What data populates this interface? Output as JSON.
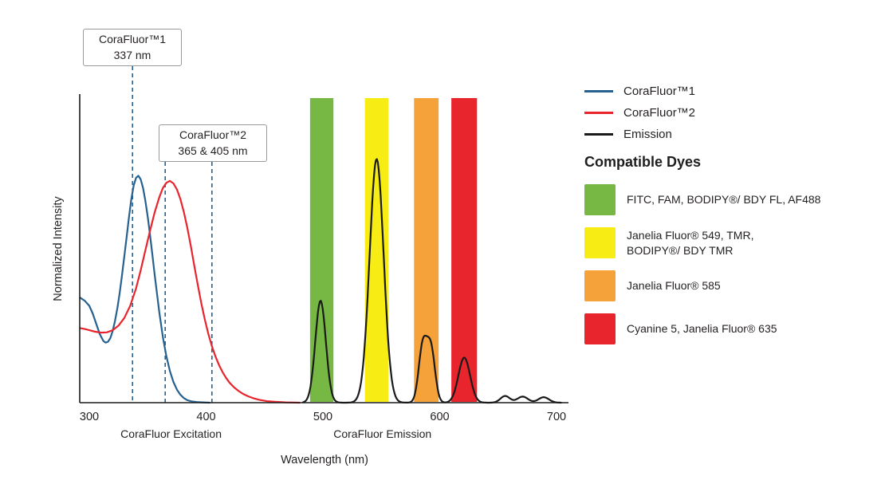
{
  "annotations": [
    {
      "title": "CoraFluor™1",
      "value": "337 nm",
      "lines_nm": [
        337
      ]
    },
    {
      "title": "CoraFluor™2",
      "value": "365 & 405 nm",
      "lines_nm": [
        365,
        405
      ]
    }
  ],
  "legend": {
    "items": [
      {
        "label": "CoraFluor™1",
        "color": "#26618F"
      },
      {
        "label": "CoraFluor™2",
        "color": "#E8242D"
      },
      {
        "label": "Emission",
        "color": "#1A1A1A"
      }
    ]
  },
  "compatible_dyes": {
    "heading": "Compatible Dyes",
    "items": [
      {
        "name": "green",
        "color": "#76B843",
        "label": "FITC, FAM, BODIPY®/ BDY FL, AF488"
      },
      {
        "name": "yellow",
        "color": "#F7EC13",
        "label": "Janelia Fluor® 549, TMR,\nBODIPY®/ BDY TMR"
      },
      {
        "name": "orange",
        "color": "#F5A23B",
        "label": "Janelia Fluor® 585"
      },
      {
        "name": "red",
        "color": "#E8242D",
        "label": "Cyanine 5, Janelia Fluor® 635"
      }
    ]
  },
  "chart_data": {
    "type": "line",
    "title": "",
    "xlabel": "Wavelength (nm)",
    "ylabel": "Normalized Intensity",
    "xlim": [
      300,
      700
    ],
    "ylim": [
      0,
      1
    ],
    "x_ticks": [
      300,
      400,
      500,
      600,
      700
    ],
    "grid": false,
    "legend_position": "top-right",
    "axis_sections": [
      {
        "label": "CoraFluor Excitation",
        "center_nm": 370
      },
      {
        "label": "CoraFluor Emission",
        "center_nm": 551
      }
    ],
    "annotation_line_color": "#26618F",
    "emission_color": "#1A1A1A",
    "bands": [
      {
        "name": "green",
        "color": "#76B843",
        "nm": [
          489,
          509
        ]
      },
      {
        "name": "yellow",
        "color": "#F7EC13",
        "nm": [
          536,
          556
        ]
      },
      {
        "name": "orange",
        "color": "#F5A23B",
        "nm": [
          578,
          599
        ]
      },
      {
        "name": "red",
        "color": "#E8242D",
        "nm": [
          610,
          632
        ]
      }
    ],
    "series": [
      {
        "name": "corafluor1-excitation",
        "label": "CoraFluor™1",
        "color": "#26618F",
        "points": [
          [
            292,
            0.345
          ],
          [
            296,
            0.335
          ],
          [
            300,
            0.318
          ],
          [
            303,
            0.292
          ],
          [
            306,
            0.258
          ],
          [
            309,
            0.225
          ],
          [
            312,
            0.203
          ],
          [
            314,
            0.197
          ],
          [
            316,
            0.2
          ],
          [
            318,
            0.212
          ],
          [
            320,
            0.235
          ],
          [
            322,
            0.268
          ],
          [
            324,
            0.31
          ],
          [
            326,
            0.36
          ],
          [
            328,
            0.418
          ],
          [
            330,
            0.48
          ],
          [
            332,
            0.545
          ],
          [
            334,
            0.61
          ],
          [
            336,
            0.668
          ],
          [
            338,
            0.713
          ],
          [
            340,
            0.738
          ],
          [
            342,
            0.745
          ],
          [
            344,
            0.733
          ],
          [
            346,
            0.705
          ],
          [
            348,
            0.663
          ],
          [
            350,
            0.61
          ],
          [
            352,
            0.55
          ],
          [
            354,
            0.486
          ],
          [
            356,
            0.42
          ],
          [
            358,
            0.356
          ],
          [
            360,
            0.295
          ],
          [
            363,
            0.215
          ],
          [
            366,
            0.152
          ],
          [
            369,
            0.104
          ],
          [
            372,
            0.068
          ],
          [
            375,
            0.043
          ],
          [
            378,
            0.026
          ],
          [
            381,
            0.015
          ],
          [
            384,
            0.008
          ],
          [
            388,
            0.004
          ],
          [
            392,
            0.002
          ],
          [
            397,
            0.001
          ],
          [
            403,
            0
          ]
        ]
      },
      {
        "name": "corafluor2-excitation",
        "label": "CoraFluor™2",
        "color": "#E8242D",
        "points": [
          [
            292,
            0.245
          ],
          [
            296,
            0.242
          ],
          [
            300,
            0.238
          ],
          [
            305,
            0.233
          ],
          [
            310,
            0.23
          ],
          [
            315,
            0.231
          ],
          [
            320,
            0.238
          ],
          [
            325,
            0.253
          ],
          [
            330,
            0.278
          ],
          [
            335,
            0.318
          ],
          [
            340,
            0.375
          ],
          [
            344,
            0.435
          ],
          [
            348,
            0.5
          ],
          [
            352,
            0.565
          ],
          [
            356,
            0.625
          ],
          [
            360,
            0.675
          ],
          [
            363,
            0.705
          ],
          [
            366,
            0.722
          ],
          [
            369,
            0.728
          ],
          [
            372,
            0.72
          ],
          [
            375,
            0.7
          ],
          [
            378,
            0.668
          ],
          [
            381,
            0.625
          ],
          [
            384,
            0.572
          ],
          [
            387,
            0.512
          ],
          [
            390,
            0.448
          ],
          [
            393,
            0.385
          ],
          [
            396,
            0.325
          ],
          [
            399,
            0.272
          ],
          [
            402,
            0.225
          ],
          [
            405,
            0.185
          ],
          [
            408,
            0.152
          ],
          [
            411,
            0.124
          ],
          [
            414,
            0.101
          ],
          [
            417,
            0.082
          ],
          [
            420,
            0.066
          ],
          [
            424,
            0.05
          ],
          [
            428,
            0.038
          ],
          [
            432,
            0.028
          ],
          [
            436,
            0.021
          ],
          [
            441,
            0.014
          ],
          [
            446,
            0.009
          ],
          [
            452,
            0.005
          ],
          [
            459,
            0.003
          ],
          [
            468,
            0.001
          ],
          [
            480,
            0
          ]
        ]
      }
    ],
    "emission_peaks": [
      {
        "c": 498,
        "s": 4.5,
        "h": 0.335
      },
      {
        "c": 546,
        "s": 6,
        "h": 0.8
      },
      {
        "c": 585.5,
        "s": 3.5,
        "h": 0.185
      },
      {
        "c": 592.5,
        "s": 3.5,
        "h": 0.175
      },
      {
        "c": 621,
        "s": 5,
        "h": 0.148
      },
      {
        "c": 656,
        "s": 4,
        "h": 0.022
      },
      {
        "c": 671,
        "s": 4.5,
        "h": 0.02
      },
      {
        "c": 689,
        "s": 4.5,
        "h": 0.018
      }
    ]
  }
}
